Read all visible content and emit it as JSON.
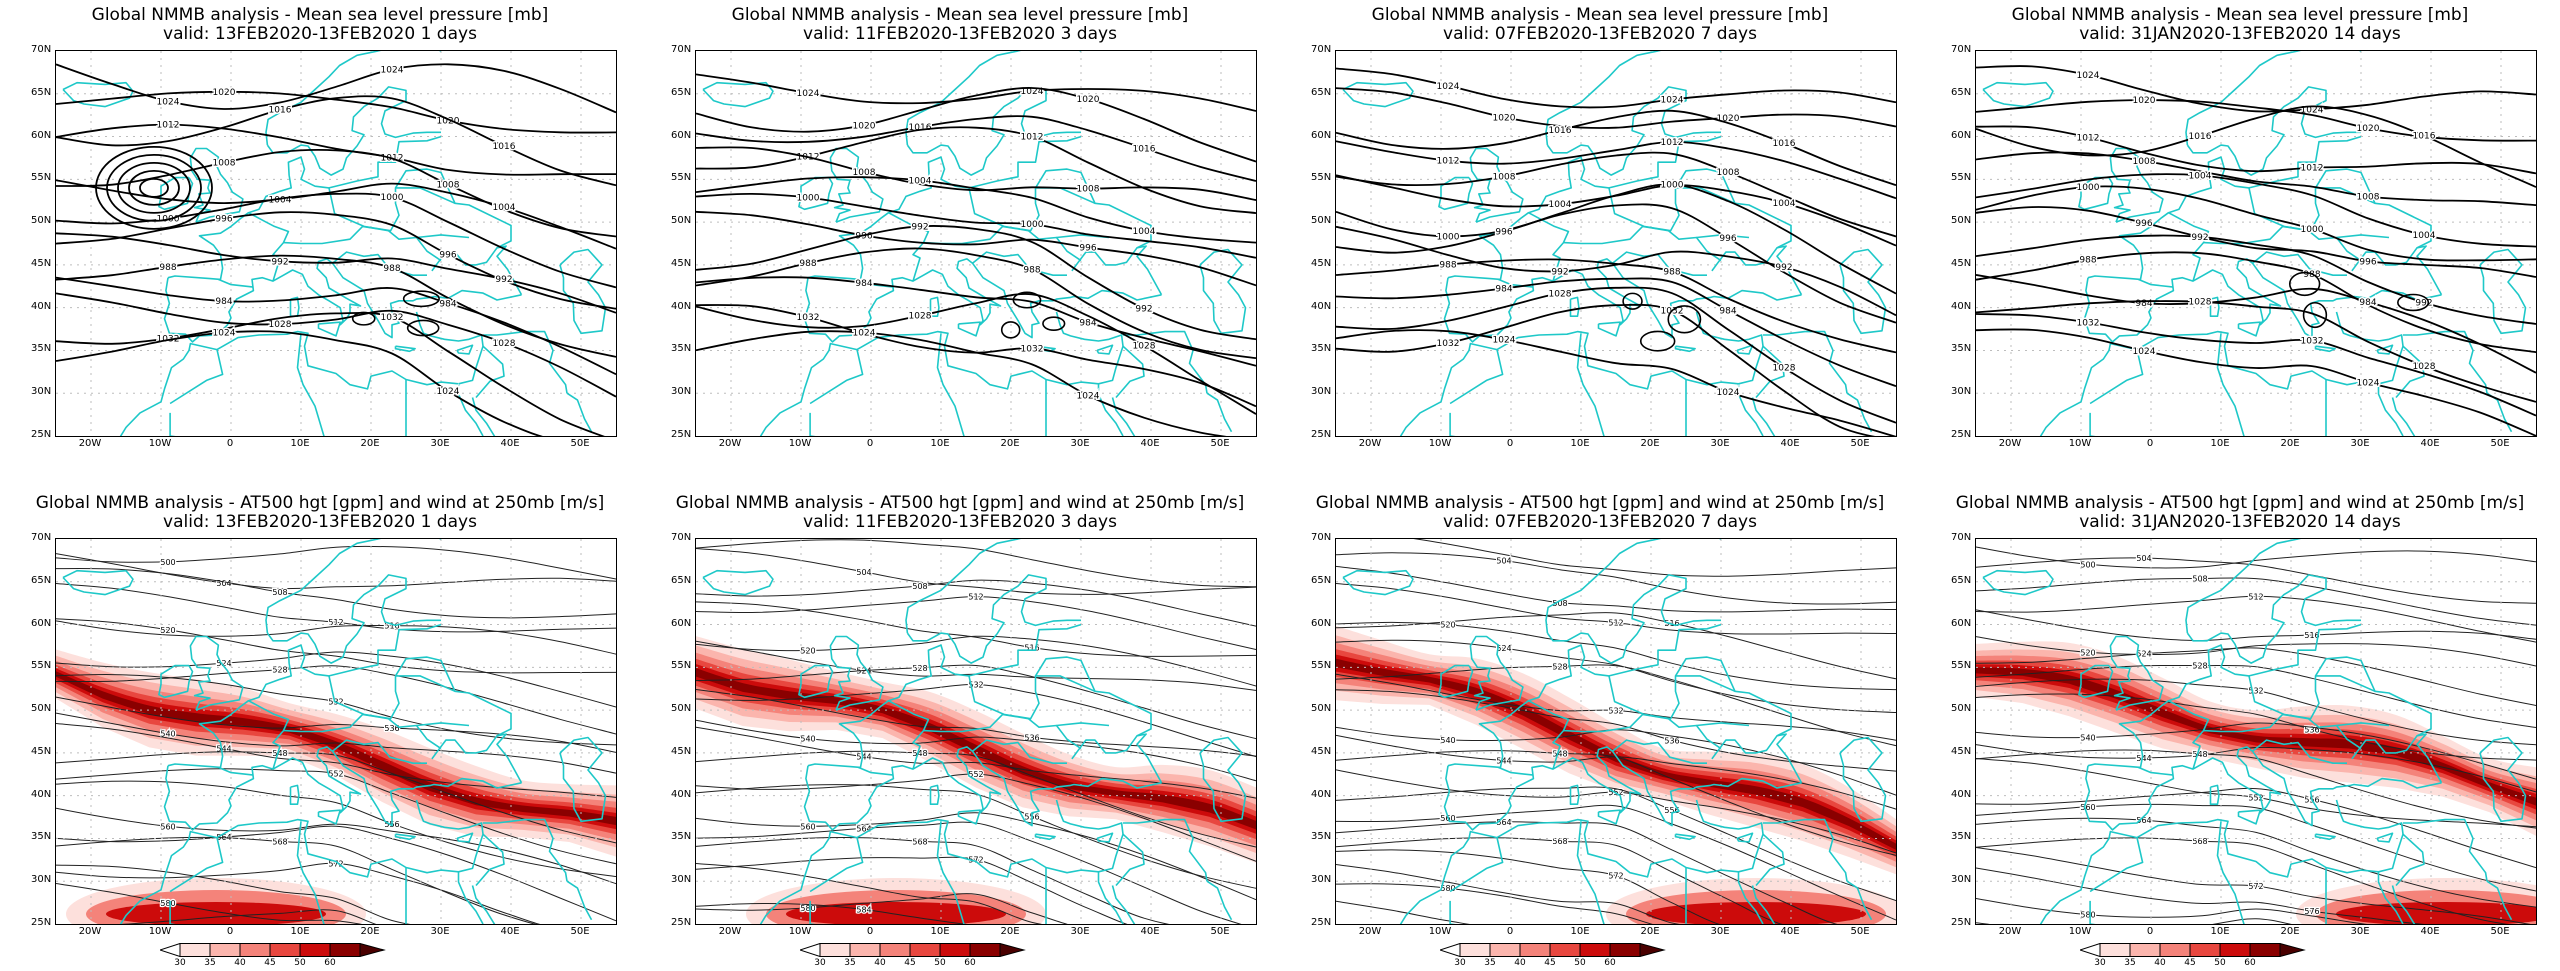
{
  "panels": [
    {
      "id": "p1",
      "kind": "mslp",
      "title": "Global NMMB analysis - Mean sea level pressure [mb]",
      "subtitle": "valid: 13FEB2020-13FEB2020   1 days"
    },
    {
      "id": "p2",
      "kind": "mslp",
      "title": "Global NMMB analysis - Mean sea level pressure [mb]",
      "subtitle": "valid: 11FEB2020-13FEB2020   3 days"
    },
    {
      "id": "p3",
      "kind": "mslp",
      "title": "Global NMMB analysis - Mean sea level pressure [mb]",
      "subtitle": "valid: 07FEB2020-13FEB2020   7 days"
    },
    {
      "id": "p4",
      "kind": "mslp",
      "title": "Global NMMB analysis - Mean sea level pressure [mb]",
      "subtitle": "valid: 31JAN2020-13FEB2020   14 days"
    },
    {
      "id": "p5",
      "kind": "z500",
      "title": "Global NMMB analysis - AT500 hgt [gpm] and wind at 250mb [m/s]",
      "subtitle": "valid: 13FEB2020-13FEB2020   1 days"
    },
    {
      "id": "p6",
      "kind": "z500",
      "title": "Global NMMB analysis - AT500 hgt [gpm] and wind at 250mb [m/s]",
      "subtitle": "valid: 11FEB2020-13FEB2020   3 days"
    },
    {
      "id": "p7",
      "kind": "z500",
      "title": "Global NMMB analysis - AT500 hgt [gpm] and wind at 250mb [m/s]",
      "subtitle": "valid: 07FEB2020-13FEB2020   7 days"
    },
    {
      "id": "p8",
      "kind": "z500",
      "title": "Global NMMB analysis - AT500 hgt [gpm] and wind at 250mb [m/s]",
      "subtitle": "valid: 31JAN2020-13FEB2020   14 days"
    }
  ],
  "lat_labels": [
    "70N",
    "65N",
    "60N",
    "55N",
    "50N",
    "45N",
    "40N",
    "35N",
    "30N",
    "25N"
  ],
  "lon_labels": [
    "20W",
    "10W",
    "0",
    "10E",
    "20E",
    "30E",
    "40E",
    "50E"
  ],
  "colorbar": {
    "ticks": [
      "30",
      "35",
      "40",
      "45",
      "50",
      "60"
    ],
    "colors": [
      "#ffffff",
      "#fde0dc",
      "#fbb5ad",
      "#f4837a",
      "#e8473f",
      "#cc0b0b",
      "#8a0000",
      "#4a0000"
    ]
  },
  "mslp_contour_labels": [
    "1024",
    "1020",
    "1016",
    "1012",
    "1008",
    "1004",
    "1000",
    "996",
    "992",
    "988",
    "984",
    "1028",
    "1032"
  ],
  "z500_contour_labels": [
    "500",
    "504",
    "508",
    "512",
    "516",
    "520",
    "524",
    "528",
    "532",
    "536",
    "540",
    "544",
    "548",
    "552",
    "556",
    "560",
    "564",
    "568",
    "572",
    "576",
    "580",
    "584"
  ],
  "colors": {
    "contour": "#000000",
    "coast": "#1ec8c8",
    "grid": "#bdbdbd",
    "wind_low": "#fbb5ad",
    "wind_mid": "#e8473f",
    "wind_high": "#8a0000"
  }
}
